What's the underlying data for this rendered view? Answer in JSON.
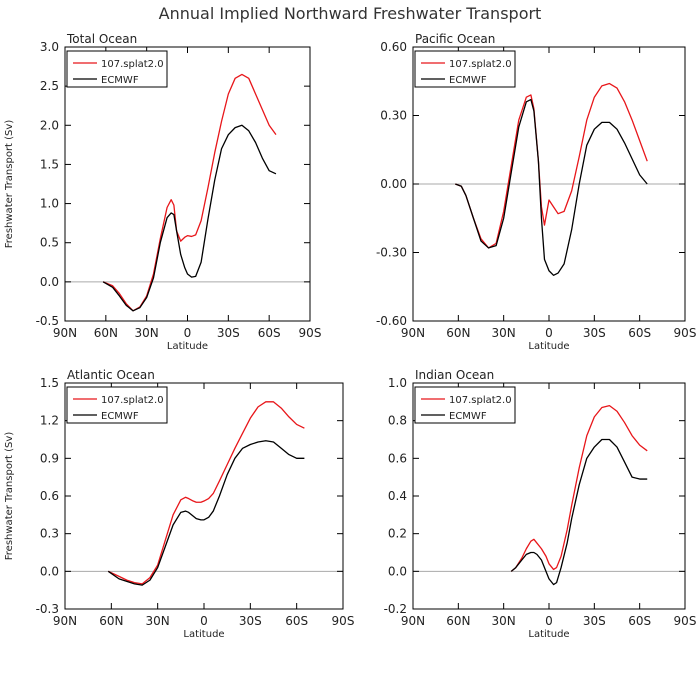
{
  "figure": {
    "title": "Annual Implied Northward Freshwater Transport"
  },
  "chart_data": [
    {
      "type": "line",
      "title": "Total Ocean",
      "xlabel": "Latitude",
      "ylabel": "Freshwater Transport (Sv)",
      "x_ticks": [
        "90N",
        "60N",
        "30N",
        "0",
        "30S",
        "60S",
        "90S"
      ],
      "x_tick_values": [
        90,
        60,
        30,
        0,
        -30,
        -60,
        -90
      ],
      "xlim": [
        90,
        -90
      ],
      "ylim": [
        -0.5,
        3.0
      ],
      "y_ticks": [
        "-0.5",
        "0.0",
        "0.5",
        "1.0",
        "1.5",
        "2.0",
        "2.5",
        "3.0"
      ],
      "y_tick_values": [
        -0.5,
        0.0,
        0.5,
        1.0,
        1.5,
        2.0,
        2.5,
        3.0
      ],
      "zero_line": true,
      "legend_position": "top-left",
      "series": [
        {
          "name": "107.splat2.0",
          "color": "#e8161a",
          "x": [
            62,
            55,
            50,
            45,
            40,
            35,
            30,
            25,
            20,
            15,
            12,
            10,
            8,
            5,
            2,
            0,
            -3,
            -6,
            -10,
            -15,
            -20,
            -25,
            -30,
            -35,
            -40,
            -45,
            -50,
            -55,
            -60,
            -65
          ],
          "y": [
            0.0,
            -0.05,
            -0.15,
            -0.28,
            -0.37,
            -0.32,
            -0.18,
            0.1,
            0.55,
            0.95,
            1.05,
            0.98,
            0.65,
            0.52,
            0.57,
            0.59,
            0.58,
            0.6,
            0.78,
            1.2,
            1.65,
            2.05,
            2.4,
            2.6,
            2.65,
            2.6,
            2.4,
            2.2,
            2.0,
            1.88
          ]
        },
        {
          "name": "ECMWF",
          "color": "#000000",
          "x": [
            62,
            55,
            50,
            45,
            40,
            35,
            30,
            25,
            20,
            15,
            12,
            10,
            8,
            5,
            2,
            0,
            -3,
            -6,
            -10,
            -15,
            -20,
            -25,
            -30,
            -35,
            -40,
            -45,
            -50,
            -55,
            -60,
            -65
          ],
          "y": [
            0.0,
            -0.07,
            -0.18,
            -0.3,
            -0.37,
            -0.33,
            -0.2,
            0.05,
            0.5,
            0.82,
            0.88,
            0.86,
            0.65,
            0.35,
            0.18,
            0.1,
            0.06,
            0.07,
            0.25,
            0.8,
            1.3,
            1.7,
            1.88,
            1.97,
            2.0,
            1.93,
            1.78,
            1.58,
            1.42,
            1.38
          ]
        }
      ]
    },
    {
      "type": "line",
      "title": "Pacific Ocean",
      "xlabel": "Latitude",
      "ylabel": "",
      "x_ticks": [
        "90N",
        "60N",
        "30N",
        "0",
        "30S",
        "60S",
        "90S"
      ],
      "x_tick_values": [
        90,
        60,
        30,
        0,
        -30,
        -60,
        -90
      ],
      "xlim": [
        90,
        -90
      ],
      "ylim": [
        -0.6,
        0.6
      ],
      "y_ticks": [
        "-0.60",
        "-0.30",
        "0.00",
        "0.30",
        "0.60"
      ],
      "y_tick_values": [
        -0.6,
        -0.3,
        0.0,
        0.3,
        0.6
      ],
      "zero_line": true,
      "legend_position": "top-left",
      "series": [
        {
          "name": "107.splat2.0",
          "color": "#e8161a",
          "x": [
            62,
            58,
            55,
            50,
            45,
            40,
            35,
            30,
            25,
            20,
            15,
            12,
            10,
            7,
            5,
            3,
            0,
            -3,
            -6,
            -10,
            -15,
            -20,
            -25,
            -30,
            -35,
            -40,
            -45,
            -50,
            -55,
            -60,
            -65
          ],
          "y": [
            0.0,
            -0.01,
            -0.05,
            -0.15,
            -0.24,
            -0.28,
            -0.26,
            -0.12,
            0.08,
            0.28,
            0.38,
            0.39,
            0.33,
            0.1,
            -0.1,
            -0.18,
            -0.07,
            -0.1,
            -0.13,
            -0.12,
            -0.03,
            0.12,
            0.28,
            0.38,
            0.43,
            0.44,
            0.42,
            0.36,
            0.28,
            0.19,
            0.1
          ]
        },
        {
          "name": "ECMWF",
          "color": "#000000",
          "x": [
            62,
            58,
            55,
            50,
            45,
            40,
            35,
            30,
            25,
            20,
            15,
            12,
            10,
            7,
            5,
            3,
            0,
            -3,
            -6,
            -10,
            -15,
            -20,
            -25,
            -30,
            -35,
            -40,
            -45,
            -50,
            -55,
            -60,
            -65
          ],
          "y": [
            0.0,
            -0.01,
            -0.05,
            -0.15,
            -0.25,
            -0.28,
            -0.27,
            -0.15,
            0.05,
            0.25,
            0.36,
            0.37,
            0.32,
            0.1,
            -0.15,
            -0.33,
            -0.38,
            -0.4,
            -0.39,
            -0.35,
            -0.2,
            0.0,
            0.17,
            0.24,
            0.27,
            0.27,
            0.24,
            0.18,
            0.11,
            0.04,
            0.0
          ]
        }
      ]
    },
    {
      "type": "line",
      "title": "Atlantic Ocean",
      "xlabel": "Latitude",
      "ylabel": "Freshwater Transport (Sv)",
      "x_ticks": [
        "90N",
        "60N",
        "30N",
        "0",
        "30S",
        "60S",
        "90S"
      ],
      "x_tick_values": [
        90,
        60,
        30,
        0,
        -30,
        -60,
        -90
      ],
      "xlim": [
        90,
        -90
      ],
      "ylim": [
        -0.3,
        1.5
      ],
      "y_ticks": [
        "-0.3",
        "0.0",
        "0.3",
        "0.6",
        "0.9",
        "1.2",
        "1.5"
      ],
      "y_tick_values": [
        -0.3,
        0.0,
        0.3,
        0.6,
        0.9,
        1.2,
        1.5
      ],
      "zero_line": true,
      "legend_position": "top-left",
      "series": [
        {
          "name": "107.splat2.0",
          "color": "#e8161a",
          "x": [
            62,
            55,
            50,
            45,
            40,
            35,
            30,
            25,
            20,
            15,
            12,
            10,
            7,
            5,
            2,
            0,
            -3,
            -6,
            -10,
            -15,
            -20,
            -25,
            -30,
            -35,
            -40,
            -45,
            -50,
            -55,
            -60,
            -65
          ],
          "y": [
            0.0,
            -0.04,
            -0.07,
            -0.09,
            -0.1,
            -0.05,
            0.05,
            0.25,
            0.45,
            0.57,
            0.59,
            0.58,
            0.56,
            0.55,
            0.55,
            0.56,
            0.58,
            0.62,
            0.72,
            0.85,
            0.98,
            1.1,
            1.22,
            1.31,
            1.35,
            1.35,
            1.3,
            1.23,
            1.17,
            1.14
          ]
        },
        {
          "name": "ECMWF",
          "color": "#000000",
          "x": [
            62,
            55,
            50,
            45,
            40,
            35,
            30,
            25,
            20,
            15,
            12,
            10,
            7,
            5,
            2,
            0,
            -3,
            -6,
            -10,
            -15,
            -20,
            -25,
            -30,
            -35,
            -40,
            -45,
            -50,
            -55,
            -60,
            -65
          ],
          "y": [
            0.0,
            -0.06,
            -0.08,
            -0.1,
            -0.11,
            -0.07,
            0.03,
            0.2,
            0.37,
            0.47,
            0.48,
            0.47,
            0.44,
            0.42,
            0.41,
            0.41,
            0.43,
            0.48,
            0.6,
            0.77,
            0.9,
            0.98,
            1.01,
            1.03,
            1.04,
            1.03,
            0.98,
            0.93,
            0.9,
            0.9
          ]
        }
      ]
    },
    {
      "type": "line",
      "title": "Indian Ocean",
      "xlabel": "Latitude",
      "ylabel": "",
      "x_ticks": [
        "90N",
        "60N",
        "30N",
        "0",
        "30S",
        "60S",
        "90S"
      ],
      "x_tick_values": [
        90,
        60,
        30,
        0,
        -30,
        -60,
        -90
      ],
      "xlim": [
        90,
        -90
      ],
      "ylim": [
        -0.2,
        1.0
      ],
      "y_ticks": [
        "-0.2",
        "0.0",
        "0.2",
        "0.4",
        "0.6",
        "0.8",
        "1.0"
      ],
      "y_tick_values": [
        -0.2,
        0.0,
        0.2,
        0.4,
        0.6,
        0.8,
        1.0
      ],
      "zero_line": true,
      "legend_position": "top-left",
      "series": [
        {
          "name": "107.splat2.0",
          "color": "#e8161a",
          "x": [
            25,
            22,
            18,
            15,
            12,
            10,
            8,
            5,
            2,
            0,
            -3,
            -5,
            -8,
            -12,
            -15,
            -20,
            -25,
            -30,
            -35,
            -40,
            -45,
            -50,
            -55,
            -60,
            -65
          ],
          "y": [
            0.0,
            0.02,
            0.07,
            0.12,
            0.16,
            0.17,
            0.15,
            0.12,
            0.08,
            0.04,
            0.01,
            0.02,
            0.08,
            0.22,
            0.35,
            0.55,
            0.72,
            0.82,
            0.87,
            0.88,
            0.85,
            0.79,
            0.72,
            0.67,
            0.64
          ]
        },
        {
          "name": "ECMWF",
          "color": "#000000",
          "x": [
            25,
            22,
            18,
            15,
            12,
            10,
            8,
            5,
            2,
            0,
            -3,
            -5,
            -8,
            -12,
            -15,
            -20,
            -25,
            -30,
            -35,
            -40,
            -45,
            -50,
            -55,
            -60,
            -65
          ],
          "y": [
            0.0,
            0.02,
            0.06,
            0.09,
            0.1,
            0.1,
            0.09,
            0.06,
            0.0,
            -0.04,
            -0.07,
            -0.06,
            0.02,
            0.15,
            0.28,
            0.46,
            0.6,
            0.66,
            0.7,
            0.7,
            0.66,
            0.58,
            0.5,
            0.49,
            0.49
          ]
        }
      ]
    }
  ]
}
